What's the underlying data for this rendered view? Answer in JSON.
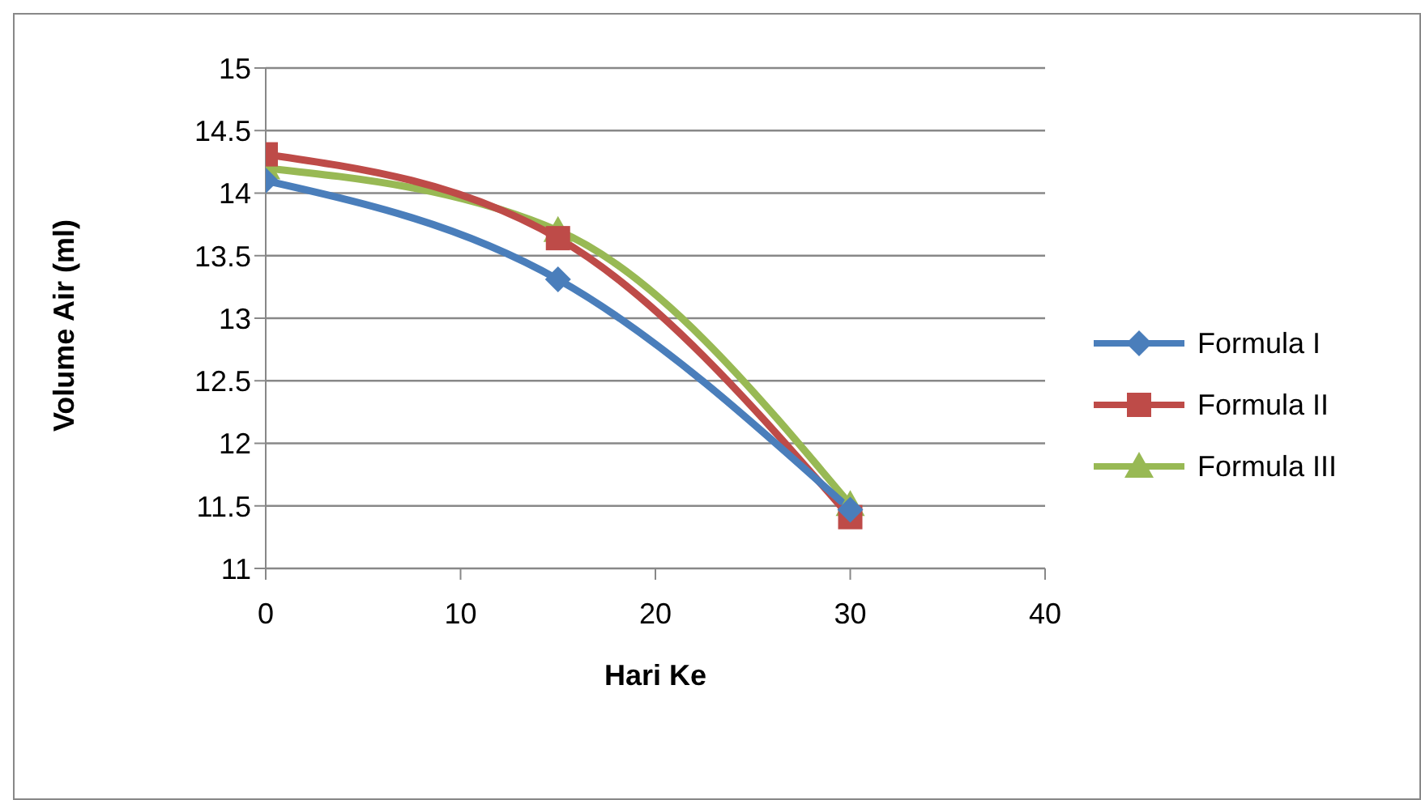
{
  "chart_data": {
    "type": "line",
    "xlabel": "Hari Ke",
    "ylabel": "Volume Air (ml)",
    "x": [
      0,
      15,
      30
    ],
    "series": [
      {
        "name": "Formula I",
        "color": "#4a7ebb",
        "values": [
          14.1,
          13.31,
          11.47
        ],
        "marker": "diamond"
      },
      {
        "name": "Formula II",
        "color": "#be4b48",
        "values": [
          14.31,
          13.64,
          11.41
        ],
        "marker": "square"
      },
      {
        "name": "Formula III",
        "color": "#98b954",
        "values": [
          14.2,
          13.7,
          11.51
        ],
        "marker": "triangle"
      }
    ],
    "xlim": [
      0,
      40
    ],
    "xticks": [
      0,
      10,
      20,
      30,
      40
    ],
    "ylim": [
      11,
      15
    ],
    "yticks": [
      11,
      11.5,
      12,
      12.5,
      13,
      13.5,
      14,
      14.5,
      15
    ],
    "grid": "y",
    "legend": "right"
  }
}
